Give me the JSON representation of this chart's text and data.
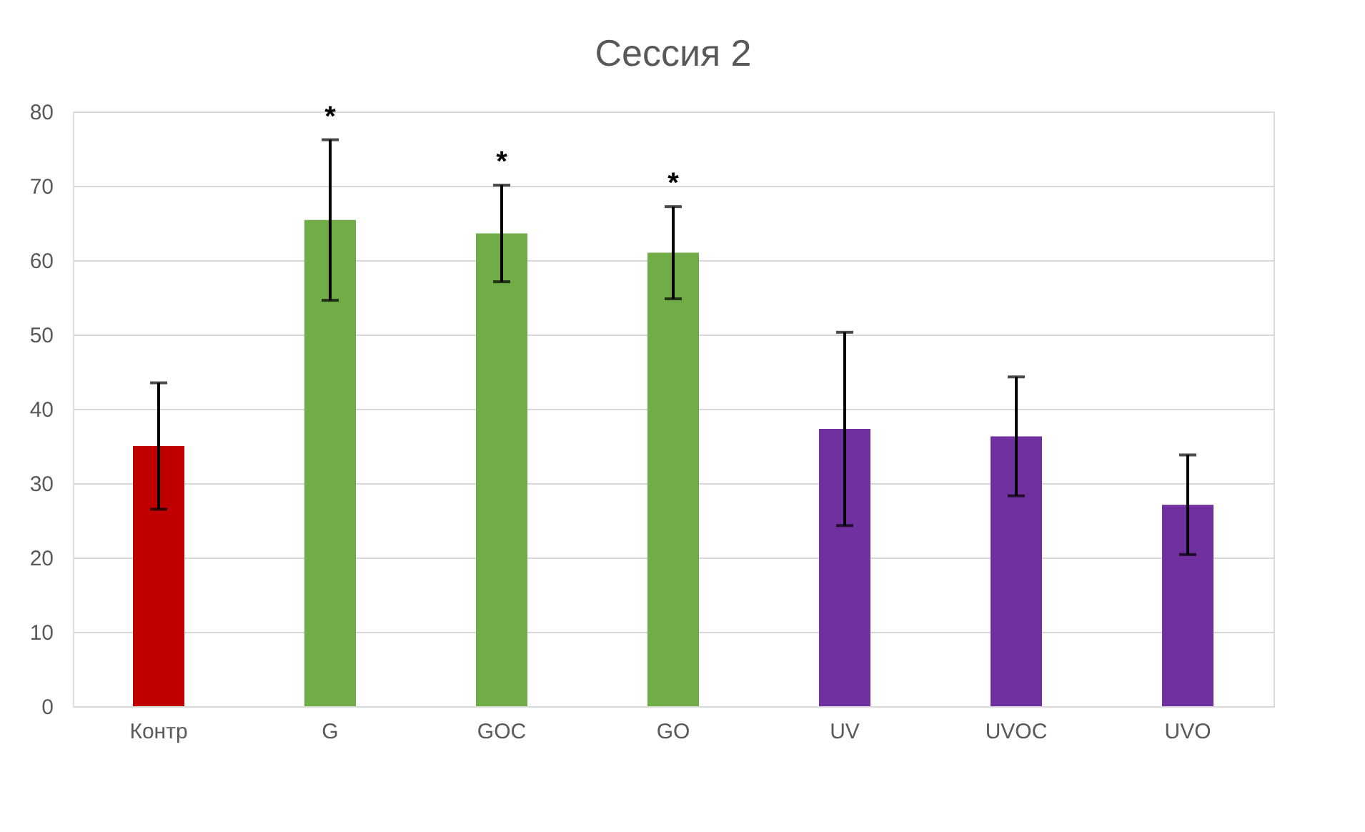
{
  "chart_data": {
    "type": "bar",
    "title": "Сессия 2",
    "categories": [
      "Контр",
      "G",
      "GOC",
      "GO",
      "UV",
      "UVOC",
      "UVO"
    ],
    "values": [
      35,
      65.4,
      63.6,
      61,
      37.3,
      36.3,
      27.1
    ],
    "errors": [
      8.5,
      10.8,
      6.5,
      6.2,
      13,
      8,
      6.7
    ],
    "colors": [
      "#c00000",
      "#70ad47",
      "#70ad47",
      "#70ad47",
      "#7030a0",
      "#7030a0",
      "#7030a0"
    ],
    "value_labels": [
      null,
      "*",
      "*",
      "*",
      null,
      null,
      null
    ],
    "ylim": [
      0,
      80
    ],
    "yticks": [
      0,
      10,
      20,
      30,
      40,
      50,
      60,
      70,
      80
    ],
    "grid": "y"
  }
}
